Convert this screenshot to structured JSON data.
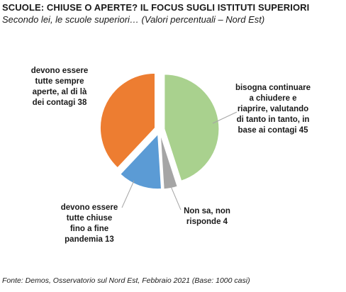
{
  "header": {
    "title": "SCUOLE: CHIUSE O APERTE? IL FOCUS SUGLI ISTITUTI SUPERIORI",
    "subtitle": "Secondo lei, le scuole superiori… (Valori percentuali – Nord Est)"
  },
  "footer": {
    "source": "Fonte: Demos, Osservatorio sul Nord Est, Febbraio 2021 (Base: 1000 casi)"
  },
  "chart_data": {
    "type": "pie",
    "title": "SCUOLE: CHIUSE O APERTE? IL FOCUS SUGLI ISTITUTI SUPERIORI",
    "subtitle": "Secondo lei, le scuole superiori… (Valori percentuali – Nord Est)",
    "legend": "none",
    "slices": [
      {
        "key": "alternare",
        "value": 45,
        "color": "#a9d18e",
        "label_lines": [
          "bisogna continuare",
          "a chiudere e",
          "riaprire, valutando",
          "di tanto in tanto, in",
          "base ai contagi 45"
        ]
      },
      {
        "key": "non-sa",
        "value": 4,
        "color": "#a5a5a5",
        "label_lines": [
          "Non sa, non",
          "risponde 4"
        ]
      },
      {
        "key": "chiuse",
        "value": 13,
        "color": "#5b9bd5",
        "label_lines": [
          "devono essere",
          "tutte chiuse",
          "fino a fine",
          "pandemia 13"
        ]
      },
      {
        "key": "aperte",
        "value": 38,
        "color": "#ed7d31",
        "label_lines": [
          "devono essere",
          "tutte sempre",
          "aperte, al di là",
          "dei contagi 38"
        ]
      }
    ]
  }
}
